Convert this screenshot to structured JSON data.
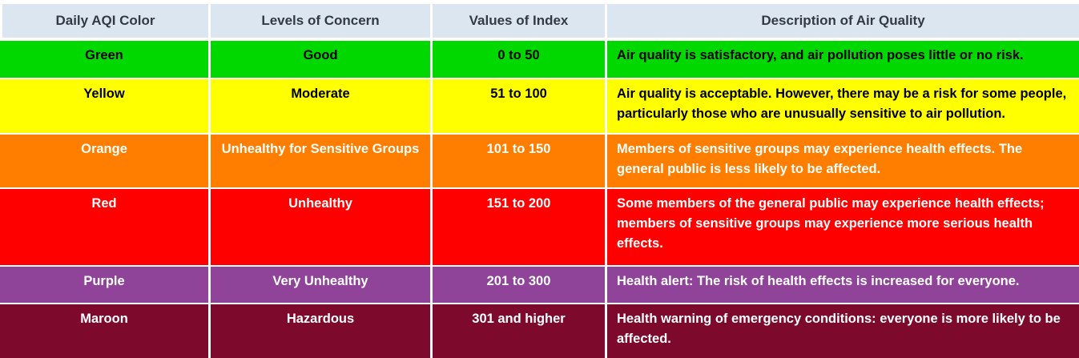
{
  "colors": {
    "header_bg": "#dce6f1",
    "header_text": "#323a45",
    "separator": "#ffffff",
    "green": "#00d800",
    "yellow": "#ffff00",
    "orange": "#ff7e00",
    "red": "#ff0000",
    "purple": "#8f4399",
    "maroon": "#7d0a2d",
    "dark_text": "#000000",
    "light_text": "#ffffff"
  },
  "table": {
    "columns": [
      {
        "label": "Daily AQI Color"
      },
      {
        "label": "Levels of Concern"
      },
      {
        "label": "Values of Index"
      },
      {
        "label": "Description of Air Quality"
      }
    ],
    "rows": [
      {
        "color_name": "Green",
        "concern": "Good",
        "index_range": "0 to 50",
        "description": "Air quality is satisfactory, and air pollution poses little or no risk.",
        "bg": "#00d800",
        "fg": "#000000"
      },
      {
        "color_name": "Yellow",
        "concern": "Moderate",
        "index_range": "51 to 100",
        "description": "Air quality is acceptable. However, there may be a risk for some people,\nparticularly those who are unusually sensitive to air pollution.",
        "bg": "#ffff00",
        "fg": "#000000"
      },
      {
        "color_name": "Orange",
        "concern": "Unhealthy for Sensitive Groups",
        "index_range": "101 to 150",
        "description": "Members of sensitive groups may experience health effects. The\ngeneral public is less likely to be affected.",
        "bg": "#ff7e00",
        "fg": "#ffffff"
      },
      {
        "color_name": "Red",
        "concern": "Unhealthy",
        "index_range": "151 to 200",
        "description": "Some members of the general public may experience health effects;\nmembers of sensitive groups may experience more serious health\neffects.",
        "bg": "#ff0000",
        "fg": "#ffffff"
      },
      {
        "color_name": "Purple",
        "concern": "Very Unhealthy",
        "index_range": "201 to 300",
        "description": "Health alert: The risk of health effects is increased for everyone.",
        "bg": "#8f4399",
        "fg": "#ffffff"
      },
      {
        "color_name": "Maroon",
        "concern": "Hazardous",
        "index_range": "301 and higher",
        "description": "Health warning of emergency conditions: everyone is more likely to be\naffected.",
        "bg": "#7d0a2d",
        "fg": "#ffffff"
      }
    ]
  }
}
